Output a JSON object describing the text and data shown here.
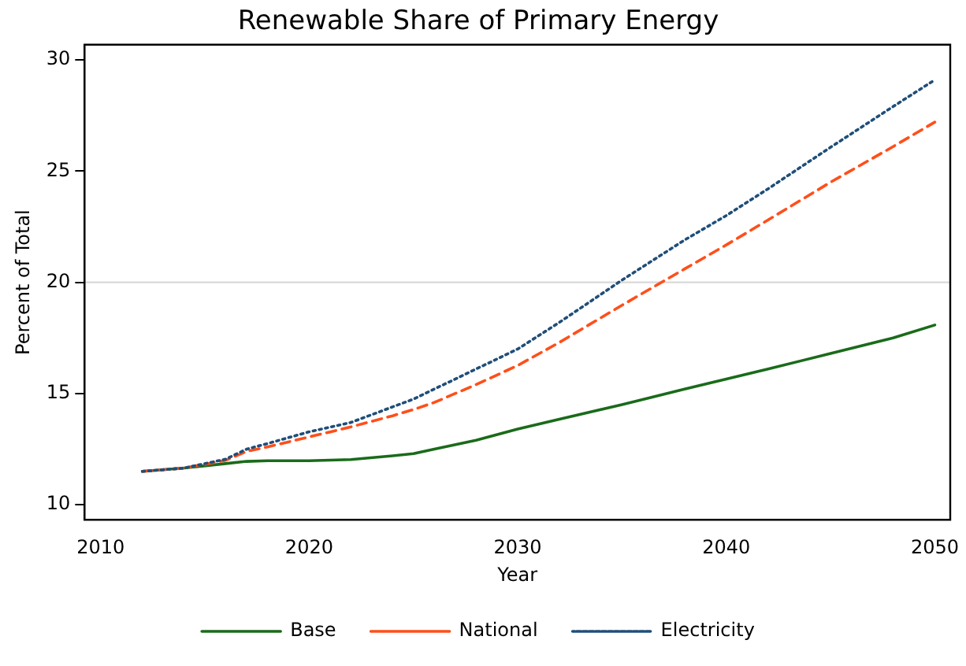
{
  "chart_data": {
    "type": "line",
    "title": "Renewable Share of Primary Energy",
    "xlabel": "Year",
    "ylabel": "Percent of Total",
    "x": [
      2012,
      2014,
      2016,
      2017,
      2018,
      2020,
      2022,
      2024,
      2025,
      2026,
      2028,
      2030,
      2032,
      2035,
      2038,
      2040,
      2042,
      2045,
      2048,
      2050
    ],
    "series": [
      {
        "name": "Base",
        "color": "#1a6b1a",
        "line_style": "solid",
        "values": [
          11.5,
          11.65,
          11.85,
          11.95,
          11.98,
          11.98,
          12.03,
          12.2,
          12.3,
          12.5,
          12.9,
          13.4,
          13.85,
          14.5,
          15.2,
          15.65,
          16.1,
          16.8,
          17.5,
          18.08
        ]
      },
      {
        "name": "National",
        "color": "#ff4f1a",
        "line_style": "dashed",
        "values": [
          11.5,
          11.65,
          12.0,
          12.4,
          12.6,
          13.05,
          13.5,
          14.0,
          14.28,
          14.6,
          15.4,
          16.26,
          17.3,
          18.97,
          20.6,
          21.68,
          22.8,
          24.5,
          26.1,
          27.2
        ]
      },
      {
        "name": "Electricity",
        "color": "#1f4e79",
        "line_style": "dotted",
        "values": [
          11.5,
          11.65,
          12.05,
          12.5,
          12.75,
          13.28,
          13.7,
          14.4,
          14.75,
          15.2,
          16.1,
          17.0,
          18.2,
          20.1,
          21.9,
          23.0,
          24.2,
          26.07,
          27.9,
          29.1
        ]
      }
    ],
    "xlim": [
      2009.23,
      2050.74
    ],
    "xticks": [
      2010,
      2020,
      2030,
      2040,
      2050
    ],
    "ylim": [
      9.32,
      30.68
    ],
    "yticks": [
      10,
      15,
      20,
      25,
      30
    ],
    "ref_lines": [
      {
        "axis": "y",
        "value": 20,
        "color": "#d9d9d9"
      }
    ],
    "legend": "bottom",
    "marker": "none"
  }
}
